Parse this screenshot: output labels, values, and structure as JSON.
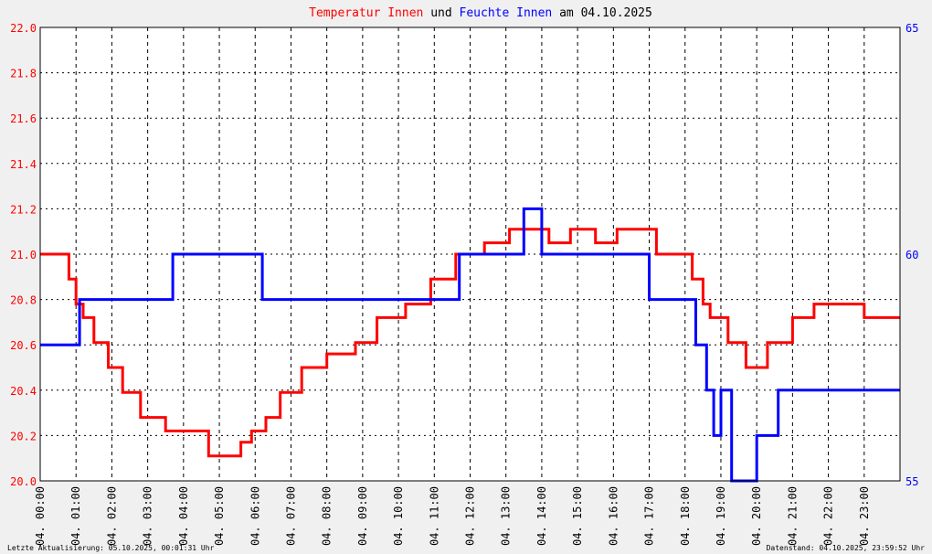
{
  "title": {
    "p1": "Temperatur Innen",
    "p2": " und ",
    "p3": "Feuchte Innen",
    "p4": " am 04.10.2025"
  },
  "footer": {
    "left": "Letzte Aktualisierung: 05.10.2025, 00:01:31 Uhr",
    "right": "Datenstand: 04.10.2025, 23:59:52 Uhr"
  },
  "colors": {
    "temperature": "#ff0000",
    "humidity": "#0000ff",
    "background": "#f0f0f0",
    "plot_background": "#ffffff",
    "grid": "#000000"
  },
  "chart_data": {
    "type": "line",
    "grid": true,
    "x_range": [
      0,
      24
    ],
    "x_ticks": [
      "04. 00:00",
      "04. 01:00",
      "04. 02:00",
      "04. 03:00",
      "04. 04:00",
      "04. 05:00",
      "04. 06:00",
      "04. 07:00",
      "04. 08:00",
      "04. 09:00",
      "04. 10:00",
      "04. 11:00",
      "04. 12:00",
      "04. 13:00",
      "04. 14:00",
      "04. 15:00",
      "04. 16:00",
      "04. 17:00",
      "04. 18:00",
      "04. 19:00",
      "04. 20:00",
      "04. 21:00",
      "04. 22:00",
      "04. 23:00"
    ],
    "y_left": {
      "range": [
        20.0,
        22.0
      ],
      "ticks": [
        "20.0",
        "20.2",
        "20.4",
        "20.6",
        "20.8",
        "21.0",
        "21.2",
        "21.4",
        "21.6",
        "21.8",
        "22.0"
      ],
      "color": "#ff0000"
    },
    "y_right": {
      "range": [
        55,
        65
      ],
      "ticks": [
        "55",
        "60",
        "65"
      ],
      "color": "#0000ff"
    },
    "series": [
      {
        "name": "Temperatur Innen",
        "axis": "left",
        "x": [
          0.0,
          0.8,
          0.8,
          1.0,
          1.0,
          1.2,
          1.2,
          1.5,
          1.5,
          1.9,
          1.9,
          2.3,
          2.3,
          2.8,
          2.8,
          3.5,
          3.5,
          4.7,
          4.7,
          5.6,
          5.6,
          5.9,
          5.9,
          6.3,
          6.3,
          6.7,
          6.7,
          7.3,
          7.3,
          8.0,
          8.0,
          8.8,
          8.8,
          9.4,
          9.4,
          10.2,
          10.2,
          10.9,
          10.9,
          11.6,
          11.6,
          12.4,
          12.4,
          13.1,
          13.1,
          14.2,
          14.2,
          14.8,
          14.8,
          15.5,
          15.5,
          16.1,
          16.1,
          17.2,
          17.2,
          18.2,
          18.2,
          18.5,
          18.5,
          18.7,
          18.7,
          19.2,
          19.2,
          19.7,
          19.7,
          20.3,
          20.3,
          21.0,
          21.0,
          21.6,
          21.6,
          22.1,
          22.1,
          23.0,
          23.0,
          23.8,
          23.8,
          24.0
        ],
        "values": [
          21.0,
          21.0,
          20.89,
          20.89,
          20.78,
          20.78,
          20.72,
          20.72,
          20.61,
          20.61,
          20.5,
          20.5,
          20.39,
          20.39,
          20.28,
          20.28,
          20.22,
          20.22,
          20.11,
          20.11,
          20.17,
          20.17,
          20.22,
          20.22,
          20.28,
          20.28,
          20.39,
          20.39,
          20.5,
          20.5,
          20.56,
          20.56,
          20.61,
          20.61,
          20.72,
          20.72,
          20.78,
          20.78,
          20.89,
          20.89,
          21.0,
          21.0,
          21.05,
          21.05,
          21.11,
          21.11,
          21.05,
          21.05,
          21.11,
          21.11,
          21.05,
          21.05,
          21.11,
          21.11,
          21.0,
          21.0,
          20.89,
          20.89,
          20.78,
          20.78,
          20.72,
          20.72,
          20.61,
          20.61,
          20.5,
          20.5,
          20.61,
          20.61,
          20.72,
          20.72,
          20.78,
          20.78,
          20.78,
          20.78,
          20.72,
          20.72,
          20.72,
          20.72
        ]
      },
      {
        "name": "Feuchte Innen",
        "axis": "right",
        "x": [
          0.0,
          1.1,
          1.1,
          3.7,
          3.7,
          6.2,
          6.2,
          11.7,
          11.7,
          13.5,
          13.5,
          14.0,
          14.0,
          17.0,
          17.0,
          18.3,
          18.3,
          18.6,
          18.6,
          18.8,
          18.8,
          19.0,
          19.0,
          19.3,
          19.3,
          20.0,
          20.0,
          20.6,
          20.6,
          24.0
        ],
        "values": [
          58.0,
          58.0,
          59.0,
          59.0,
          60.0,
          60.0,
          59.0,
          59.0,
          60.0,
          60.0,
          61.0,
          61.0,
          60.0,
          60.0,
          59.0,
          59.0,
          58.0,
          58.0,
          57.0,
          57.0,
          56.0,
          56.0,
          57.0,
          57.0,
          55.0,
          55.0,
          56.0,
          56.0,
          57.0,
          57.0
        ]
      }
    ]
  }
}
